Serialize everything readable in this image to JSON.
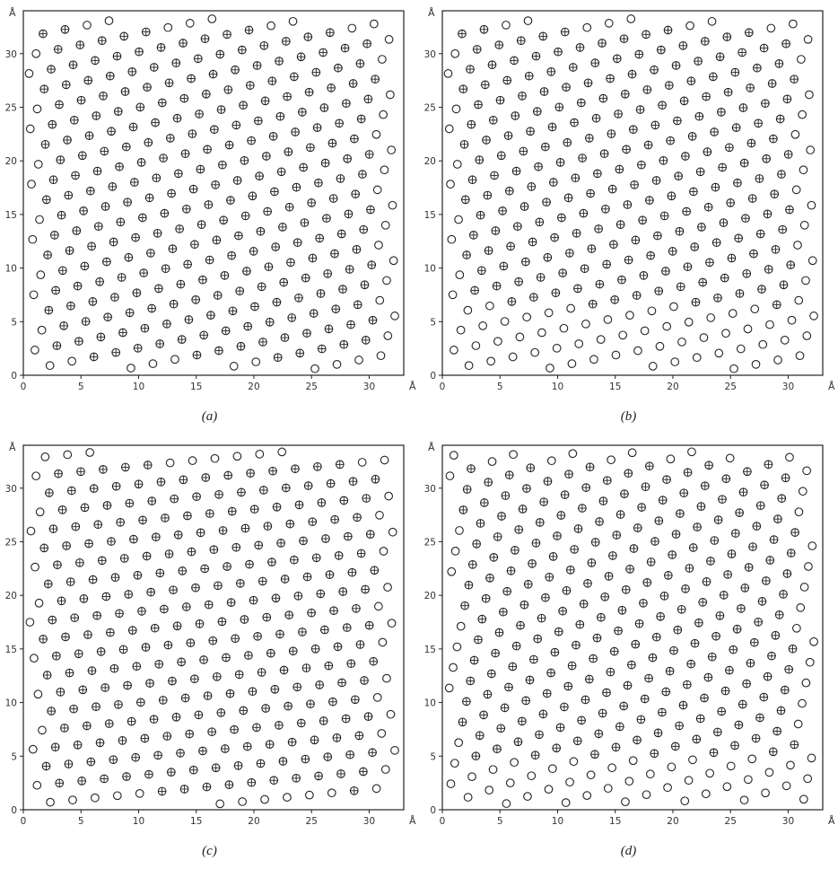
{
  "chart_data": [
    {
      "type": "scatter",
      "caption": "(a)",
      "x_unit": "Å",
      "y_unit": "Å",
      "xlim": [
        0,
        33
      ],
      "ylim": [
        0,
        34
      ],
      "xticks": [
        "0",
        "5",
        "10",
        "15",
        "20",
        "25",
        "30"
      ],
      "yticks": [
        "0",
        "5",
        "10",
        "15",
        "20",
        "25",
        "30"
      ],
      "series": [
        {
          "marker": "crossed-circle",
          "description": "interior atoms"
        },
        {
          "marker": "open-circle",
          "description": "boundary atoms"
        }
      ],
      "lattice_angle_deg": 12,
      "spacing": 1.95,
      "boundary_depth_bottom": 1.6,
      "grid": false
    },
    {
      "type": "scatter",
      "caption": "(b)",
      "x_unit": "Å",
      "y_unit": "Å",
      "xlim": [
        0,
        33
      ],
      "ylim": [
        0,
        34
      ],
      "xticks": [
        "0",
        "5",
        "10",
        "15",
        "20",
        "25",
        "30"
      ],
      "yticks": [
        "0",
        "5",
        "10",
        "15",
        "20",
        "25",
        "30"
      ],
      "series": [
        {
          "marker": "crossed-circle",
          "description": "interior atoms"
        },
        {
          "marker": "open-circle",
          "description": "boundary atoms"
        }
      ],
      "lattice_angle_deg": 12,
      "spacing": 1.95,
      "boundary_depth_bottom": 6.5,
      "grid": false
    },
    {
      "type": "scatter",
      "caption": "(c)",
      "x_unit": "Å",
      "y_unit": "Å",
      "xlim": [
        0,
        33
      ],
      "ylim": [
        0,
        34
      ],
      "xticks": [
        "0",
        "5",
        "10",
        "15",
        "20",
        "25",
        "30"
      ],
      "yticks": [
        "0",
        "5",
        "10",
        "15",
        "20",
        "25",
        "30"
      ],
      "series": [
        {
          "marker": "crossed-circle",
          "description": "interior atoms"
        },
        {
          "marker": "open-circle",
          "description": "boundary atoms"
        }
      ],
      "lattice_angle_deg": 6,
      "spacing": 1.95,
      "boundary_depth_bottom": 1.6,
      "grid": false
    },
    {
      "type": "scatter",
      "caption": "(d)",
      "x_unit": "Å",
      "y_unit": "Å",
      "xlim": [
        0,
        33
      ],
      "ylim": [
        0,
        34
      ],
      "xticks": [
        "0",
        "5",
        "10",
        "15",
        "20",
        "25",
        "30"
      ],
      "yticks": [
        "0",
        "5",
        "10",
        "15",
        "20",
        "25",
        "30"
      ],
      "series": [
        {
          "marker": "crossed-circle",
          "description": "interior atoms"
        },
        {
          "marker": "open-circle",
          "description": "boundary atoms"
        }
      ],
      "lattice_angle_deg": 20,
      "spacing": 1.95,
      "boundary_depth_bottom": 5.0,
      "grid": false
    }
  ]
}
